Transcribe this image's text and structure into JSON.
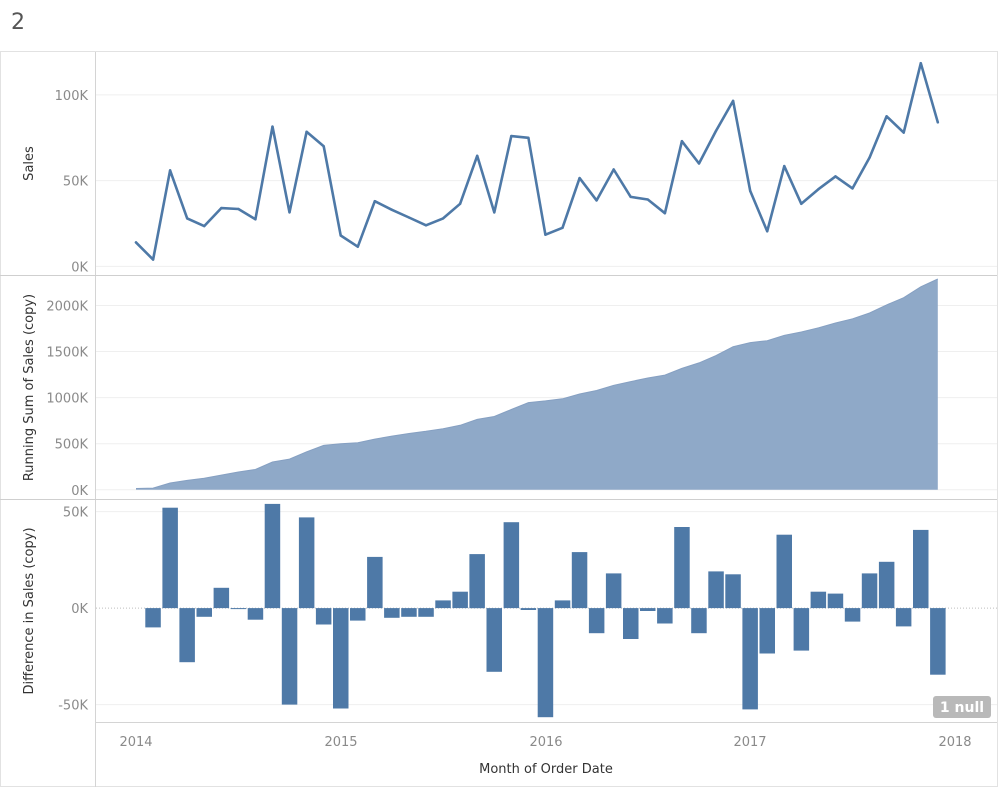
{
  "sheet": {
    "title": "2"
  },
  "chart_data": [
    {
      "type": "line",
      "ylabel": "Sales",
      "ylim": [
        -5000,
        125000
      ],
      "yticks": [
        {
          "value": 0,
          "label": "0K"
        },
        {
          "value": 50000,
          "label": "50K"
        },
        {
          "value": 100000,
          "label": "100K"
        }
      ],
      "color": "#4e79a7",
      "grid": true,
      "values": [
        14000,
        4000,
        56000,
        28000,
        23500,
        34000,
        33500,
        27500,
        81500,
        31500,
        78500,
        70000,
        18000,
        11500,
        38000,
        33000,
        28500,
        24000,
        28000,
        36500,
        64500,
        31500,
        76000,
        75000,
        18500,
        22500,
        51500,
        38500,
        56500,
        40500,
        39000,
        31000,
        73000,
        60000,
        79000,
        96500,
        44000,
        20500,
        58500,
        36500,
        45000,
        52500,
        45500,
        63500,
        87500,
        78000,
        118500,
        84000
      ]
    },
    {
      "type": "area",
      "ylabel": "Running Sum of Sales (copy)",
      "ylim": [
        -100000,
        2320000
      ],
      "yticks": [
        {
          "value": 0,
          "label": "0K"
        },
        {
          "value": 500000,
          "label": "500K"
        },
        {
          "value": 1000000,
          "label": "1000K"
        },
        {
          "value": 1500000,
          "label": "1500K"
        },
        {
          "value": 2000000,
          "label": "2000K"
        }
      ],
      "color": "#8fa9c8",
      "grid": true,
      "values": [
        14000,
        18000,
        74000,
        102000,
        125500,
        159500,
        193000,
        220500,
        302000,
        333500,
        412000,
        482000,
        500000,
        511500,
        549500,
        582500,
        611000,
        635000,
        663000,
        699500,
        764000,
        795500,
        871500,
        946500,
        965000,
        987500,
        1039000,
        1077500,
        1134000,
        1174500,
        1213500,
        1244500,
        1317500,
        1377500,
        1456500,
        1553000,
        1597000,
        1617500,
        1676000,
        1712500,
        1757500,
        1810000,
        1855500,
        1919000,
        2006500,
        2084500,
        2203000,
        2287000
      ]
    },
    {
      "type": "bar",
      "ylabel": "Difference in Sales (copy)",
      "xlabel": "Month of Order Date",
      "ylim": [
        -59000,
        56000
      ],
      "yticks": [
        {
          "value": -50000,
          "label": "-50K"
        },
        {
          "value": 0,
          "label": "0K"
        },
        {
          "value": 50000,
          "label": "50K"
        }
      ],
      "color": "#4e79a7",
      "grid": true,
      "zero_line": "dotted",
      "values": [
        null,
        -10000,
        52000,
        -28000,
        -4500,
        10500,
        -500,
        -6000,
        54000,
        -50000,
        47000,
        -8500,
        -52000,
        -6500,
        26500,
        -5000,
        -4500,
        -4500,
        4000,
        8500,
        28000,
        -33000,
        44500,
        -1000,
        -56500,
        4000,
        29000,
        -13000,
        18000,
        -16000,
        -1500,
        -8000,
        42000,
        -13000,
        19000,
        17500,
        -52500,
        -23500,
        38000,
        -22000,
        8500,
        7500,
        -7000,
        18000,
        24000,
        -9500,
        40500,
        -34500
      ],
      "null_badge": "1 null"
    }
  ],
  "x_axis": {
    "title": "Month of Order Date",
    "ticks": [
      "2014",
      "2015",
      "2016",
      "2017",
      "2018"
    ]
  }
}
